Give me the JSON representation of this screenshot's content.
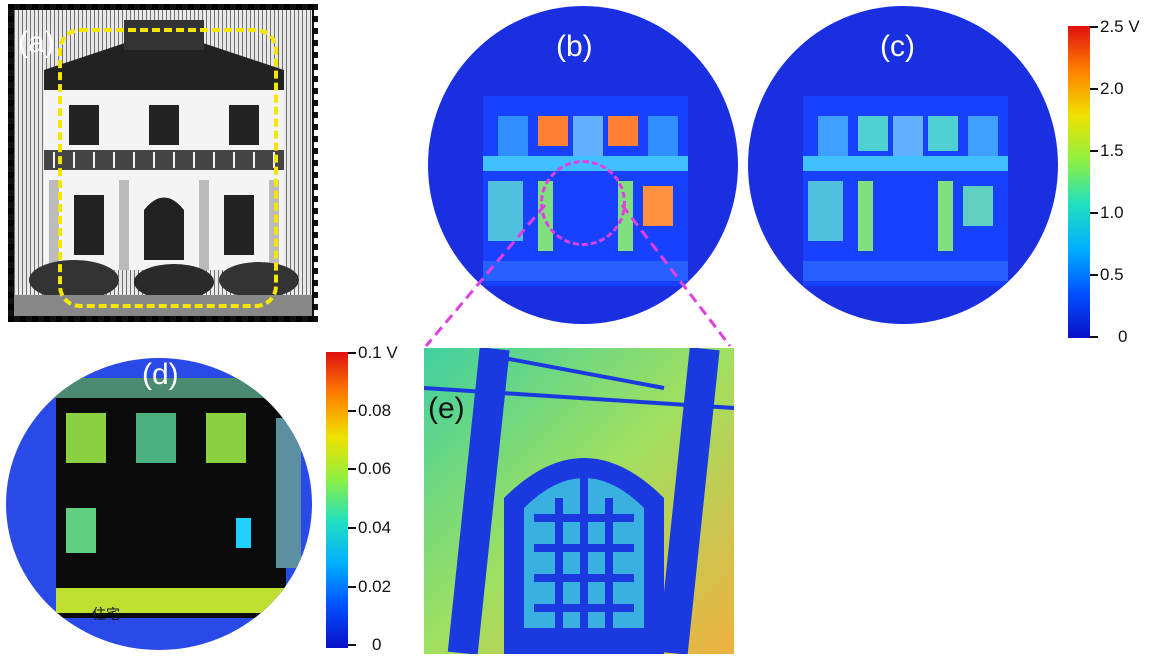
{
  "panels": {
    "a": {
      "label": "(a)"
    },
    "b": {
      "label": "(b)"
    },
    "c": {
      "label": "(c)"
    },
    "d": {
      "label": "(d)",
      "caption_text": "住宅"
    },
    "e": {
      "label": "(e)"
    }
  },
  "colorbar_main": {
    "ticks": [
      "2.5 V",
      "2.0",
      "1.5",
      "1.0",
      "0.5",
      "0"
    ],
    "tick_values": [
      2.5,
      2.0,
      1.5,
      1.0,
      0.5,
      0
    ],
    "range": [
      0,
      2.5
    ],
    "colormap": [
      "#0a10c8",
      "#0050ff",
      "#00b0ff",
      "#20e0c0",
      "#90f040",
      "#f0e000",
      "#ff8000",
      "#e01010"
    ]
  },
  "colorbar_small": {
    "ticks": [
      "0.1 V",
      "0.08",
      "0.06",
      "0.04",
      "0.02",
      "0"
    ],
    "tick_values": [
      0.1,
      0.08,
      0.06,
      0.04,
      0.02,
      0
    ],
    "range": [
      0,
      0.1
    ],
    "colormap": [
      "#0a10c8",
      "#0050ff",
      "#00b0ff",
      "#20e0c0",
      "#90f040",
      "#f0e000",
      "#ff8000",
      "#e01010"
    ]
  },
  "colors": {
    "roi_box": "#f5e600",
    "zoom_lines": "#e040e0",
    "map_background": "#1a30e0"
  }
}
